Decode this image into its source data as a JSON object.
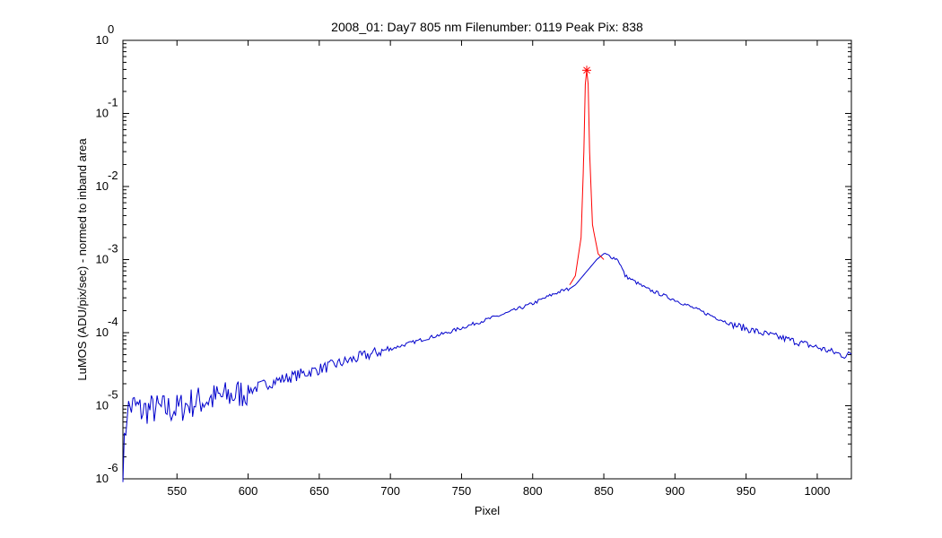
{
  "chart_data": {
    "type": "line",
    "title": "2008_01: Day7  805 nm  Filenumber: 0119 Peak Pix: 838",
    "xlabel": "Pixel",
    "ylabel": "LuMOS (ADU/pix/sec) - normed to inband area",
    "xlim": [
      512,
      1024
    ],
    "ylim": [
      1e-06,
      1
    ],
    "yscale": "log",
    "grid": false,
    "x_ticks": [
      550,
      600,
      650,
      700,
      750,
      800,
      850,
      900,
      950,
      1000
    ],
    "x_tick_labels": [
      "550",
      "600",
      "650",
      "700",
      "750",
      "800",
      "850",
      "900",
      "950",
      "1000"
    ],
    "y_ticks": [
      1e-06,
      1e-05,
      0.0001,
      0.001,
      0.01,
      0.1,
      1
    ],
    "y_tick_base": "10",
    "y_tick_exponents": [
      "-6",
      "-5",
      "-4",
      "-3",
      "-2",
      "-1",
      "0"
    ],
    "series": [
      {
        "color": "#0000cc",
        "x": [
          512,
          515,
          520,
          525,
          530,
          540,
          550,
          560,
          570,
          580,
          590,
          600,
          610,
          620,
          640,
          660,
          680,
          700,
          720,
          740,
          760,
          780,
          800,
          815,
          820,
          826,
          830,
          845,
          850,
          855,
          860,
          865,
          880,
          900,
          920,
          940,
          960,
          980,
          1000,
          1010,
          1020,
          1024
        ],
        "y": [
          1.5e-06,
          9e-06,
          1e-05,
          8.5e-06,
          9e-06,
          9e-06,
          9e-06,
          1.1e-05,
          1.2e-05,
          1.3e-05,
          1.4e-05,
          1.6e-05,
          1.9e-05,
          2.2e-05,
          2.8e-05,
          3.6e-05,
          4.7e-05,
          6e-05,
          7.8e-05,
          0.0001,
          0.000135,
          0.00018,
          0.00025,
          0.00034,
          0.00037,
          0.0004,
          0.00045,
          0.001,
          0.0012,
          0.0011,
          0.001,
          0.0006,
          0.0004,
          0.00028,
          0.00019,
          0.00013,
          0.0001,
          8e-05,
          6.3e-05,
          5.5e-05,
          4.8e-05,
          5.2e-05
        ]
      },
      {
        "color": "#ff0000",
        "x": [
          826,
          830,
          834,
          836,
          837,
          838,
          839,
          840,
          842,
          846,
          850
        ],
        "y": [
          0.00045,
          0.0006,
          0.002,
          0.03,
          0.25,
          0.39,
          0.25,
          0.03,
          0.003,
          0.0012,
          0.001
        ]
      }
    ],
    "peak_marker": {
      "x": 838,
      "y": 0.39,
      "symbol": "*",
      "color": "#ff0000"
    }
  }
}
